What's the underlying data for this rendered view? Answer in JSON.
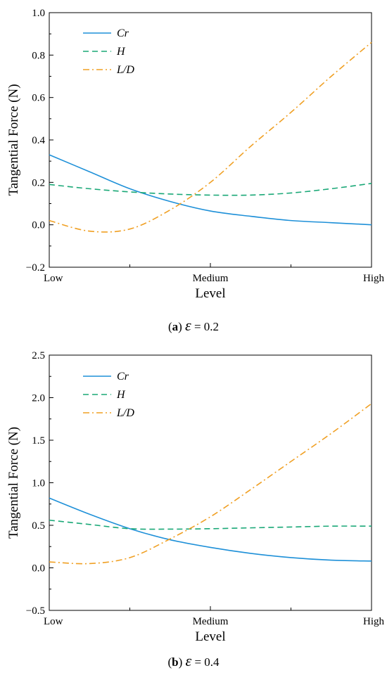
{
  "chart_data": [
    {
      "type": "line",
      "caption_letter": "a",
      "caption_symbol": "ε",
      "caption_value": "= 0.2",
      "xlabel": "Level",
      "ylabel": "Tangential Force (N)",
      "x_categories": [
        "Low",
        "Medium",
        "High"
      ],
      "x": [
        0,
        0.125,
        0.25,
        0.375,
        0.5,
        0.625,
        0.75,
        0.875,
        1
      ],
      "ylim": [
        -0.2,
        1.0
      ],
      "yticks": [
        -0.2,
        0.0,
        0.2,
        0.4,
        0.6,
        0.8,
        1.0
      ],
      "ytick_labels": [
        "−0.2",
        "0.0",
        "0.2",
        "0.4",
        "0.6",
        "0.8",
        "1.0"
      ],
      "legend_position": "top-left",
      "series": [
        {
          "name": "Cr",
          "color": "#1e90d8",
          "dash": "solid",
          "values": [
            0.33,
            0.25,
            0.17,
            0.11,
            0.065,
            0.04,
            0.02,
            0.01,
            0.0
          ]
        },
        {
          "name": "H",
          "color": "#1aa877",
          "dash": "dashed",
          "values": [
            0.19,
            0.17,
            0.155,
            0.145,
            0.14,
            0.14,
            0.15,
            0.17,
            0.195
          ]
        },
        {
          "name": "L/D",
          "color": "#f0a024",
          "dash": "dashdot",
          "values": [
            0.02,
            -0.03,
            -0.02,
            0.07,
            0.2,
            0.37,
            0.53,
            0.7,
            0.86
          ]
        }
      ]
    },
    {
      "type": "line",
      "caption_letter": "b",
      "caption_symbol": "ε",
      "caption_value": "= 0.4",
      "xlabel": "Level",
      "ylabel": "Tangential Force (N)",
      "x_categories": [
        "Low",
        "Medium",
        "High"
      ],
      "x": [
        0,
        0.125,
        0.25,
        0.375,
        0.5,
        0.625,
        0.75,
        0.875,
        1
      ],
      "ylim": [
        -0.5,
        2.5
      ],
      "yticks": [
        -0.5,
        0.0,
        0.5,
        1.0,
        1.5,
        2.0,
        2.5
      ],
      "ytick_labels": [
        "−0.5",
        "0.0",
        "0.5",
        "1.0",
        "1.5",
        "2.0",
        "2.5"
      ],
      "legend_position": "top-left",
      "series": [
        {
          "name": "Cr",
          "color": "#1e90d8",
          "dash": "solid",
          "values": [
            0.82,
            0.63,
            0.46,
            0.33,
            0.24,
            0.17,
            0.12,
            0.09,
            0.08
          ]
        },
        {
          "name": "H",
          "color": "#1aa877",
          "dash": "dashed",
          "values": [
            0.56,
            0.51,
            0.46,
            0.455,
            0.46,
            0.47,
            0.48,
            0.49,
            0.49
          ]
        },
        {
          "name": "L/D",
          "color": "#f0a024",
          "dash": "dashdot",
          "values": [
            0.07,
            0.05,
            0.12,
            0.34,
            0.6,
            0.92,
            1.25,
            1.58,
            1.93
          ]
        }
      ]
    }
  ]
}
